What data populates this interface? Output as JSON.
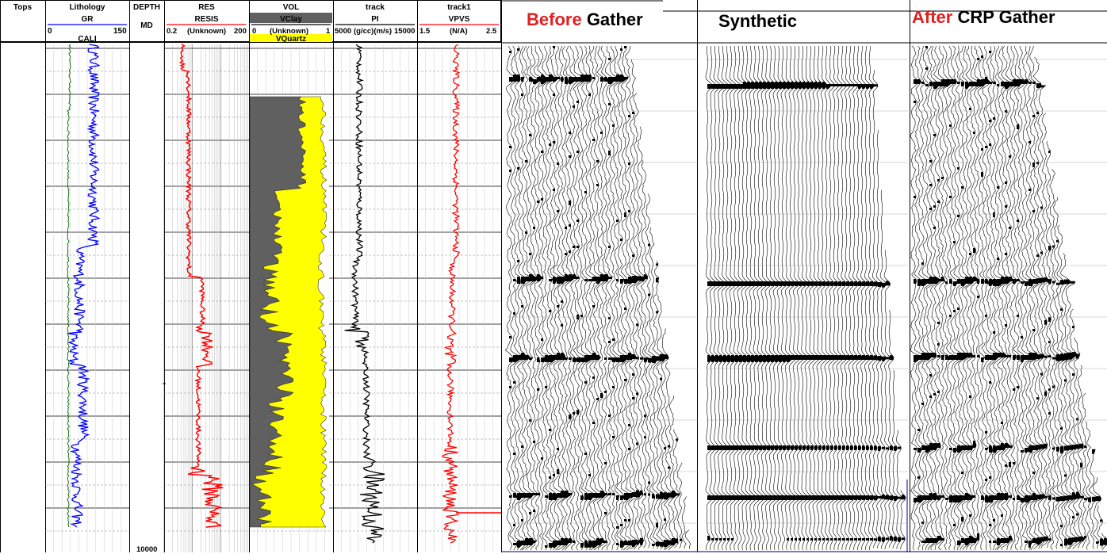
{
  "chart_data": [
    {
      "type": "well_log",
      "tracks": [
        {
          "title": "Tops",
          "curves": []
        },
        {
          "title": "Lithology",
          "curves": [
            {
              "name": "GR",
              "min": 0,
              "max": 150,
              "color": "#0000ff"
            },
            {
              "name": "CALI",
              "color": "#006400"
            }
          ]
        },
        {
          "title": "DEPTH",
          "unit": "MD",
          "visible_label": "10000"
        },
        {
          "title": "RES",
          "curves": [
            {
              "name": "RESIS",
              "min": "0.2",
              "unit": "(Unknown)",
              "max": "200",
              "scale": "log",
              "color": "#ff0000"
            }
          ]
        },
        {
          "title": "VOL",
          "curves": [
            {
              "name": "VClay",
              "min": "0",
              "unit": "(Unknown)",
              "max": "1",
              "fill": "#606060"
            },
            {
              "name": "VQuartz",
              "fill": "#ffff00"
            }
          ]
        },
        {
          "title": "track",
          "curves": [
            {
              "name": "PI",
              "min": "5000",
              "unit": "(g/cc)(m/s)",
              "max": "15000",
              "color": "#000000"
            }
          ]
        },
        {
          "title": "track1",
          "curves": [
            {
              "name": "VPVS",
              "min": "1.5",
              "unit": "(N/A)",
              "max": "2.5",
              "color": "#ff0000"
            }
          ]
        }
      ]
    },
    {
      "type": "seismic_gathers",
      "panels": [
        {
          "title_red": "Before",
          "title_black": "Gather"
        },
        {
          "title_red": "",
          "title_black": "Synthetic"
        },
        {
          "title_red": "After",
          "title_black": "CRP Gather"
        }
      ]
    }
  ],
  "colors": {
    "gr": "#0000ff",
    "resis": "#ff0000",
    "vclay": "#606060",
    "vquartz": "#ffff00",
    "pi": "#000000",
    "vpvs": "#ff0000",
    "title_red": "#e02020"
  }
}
